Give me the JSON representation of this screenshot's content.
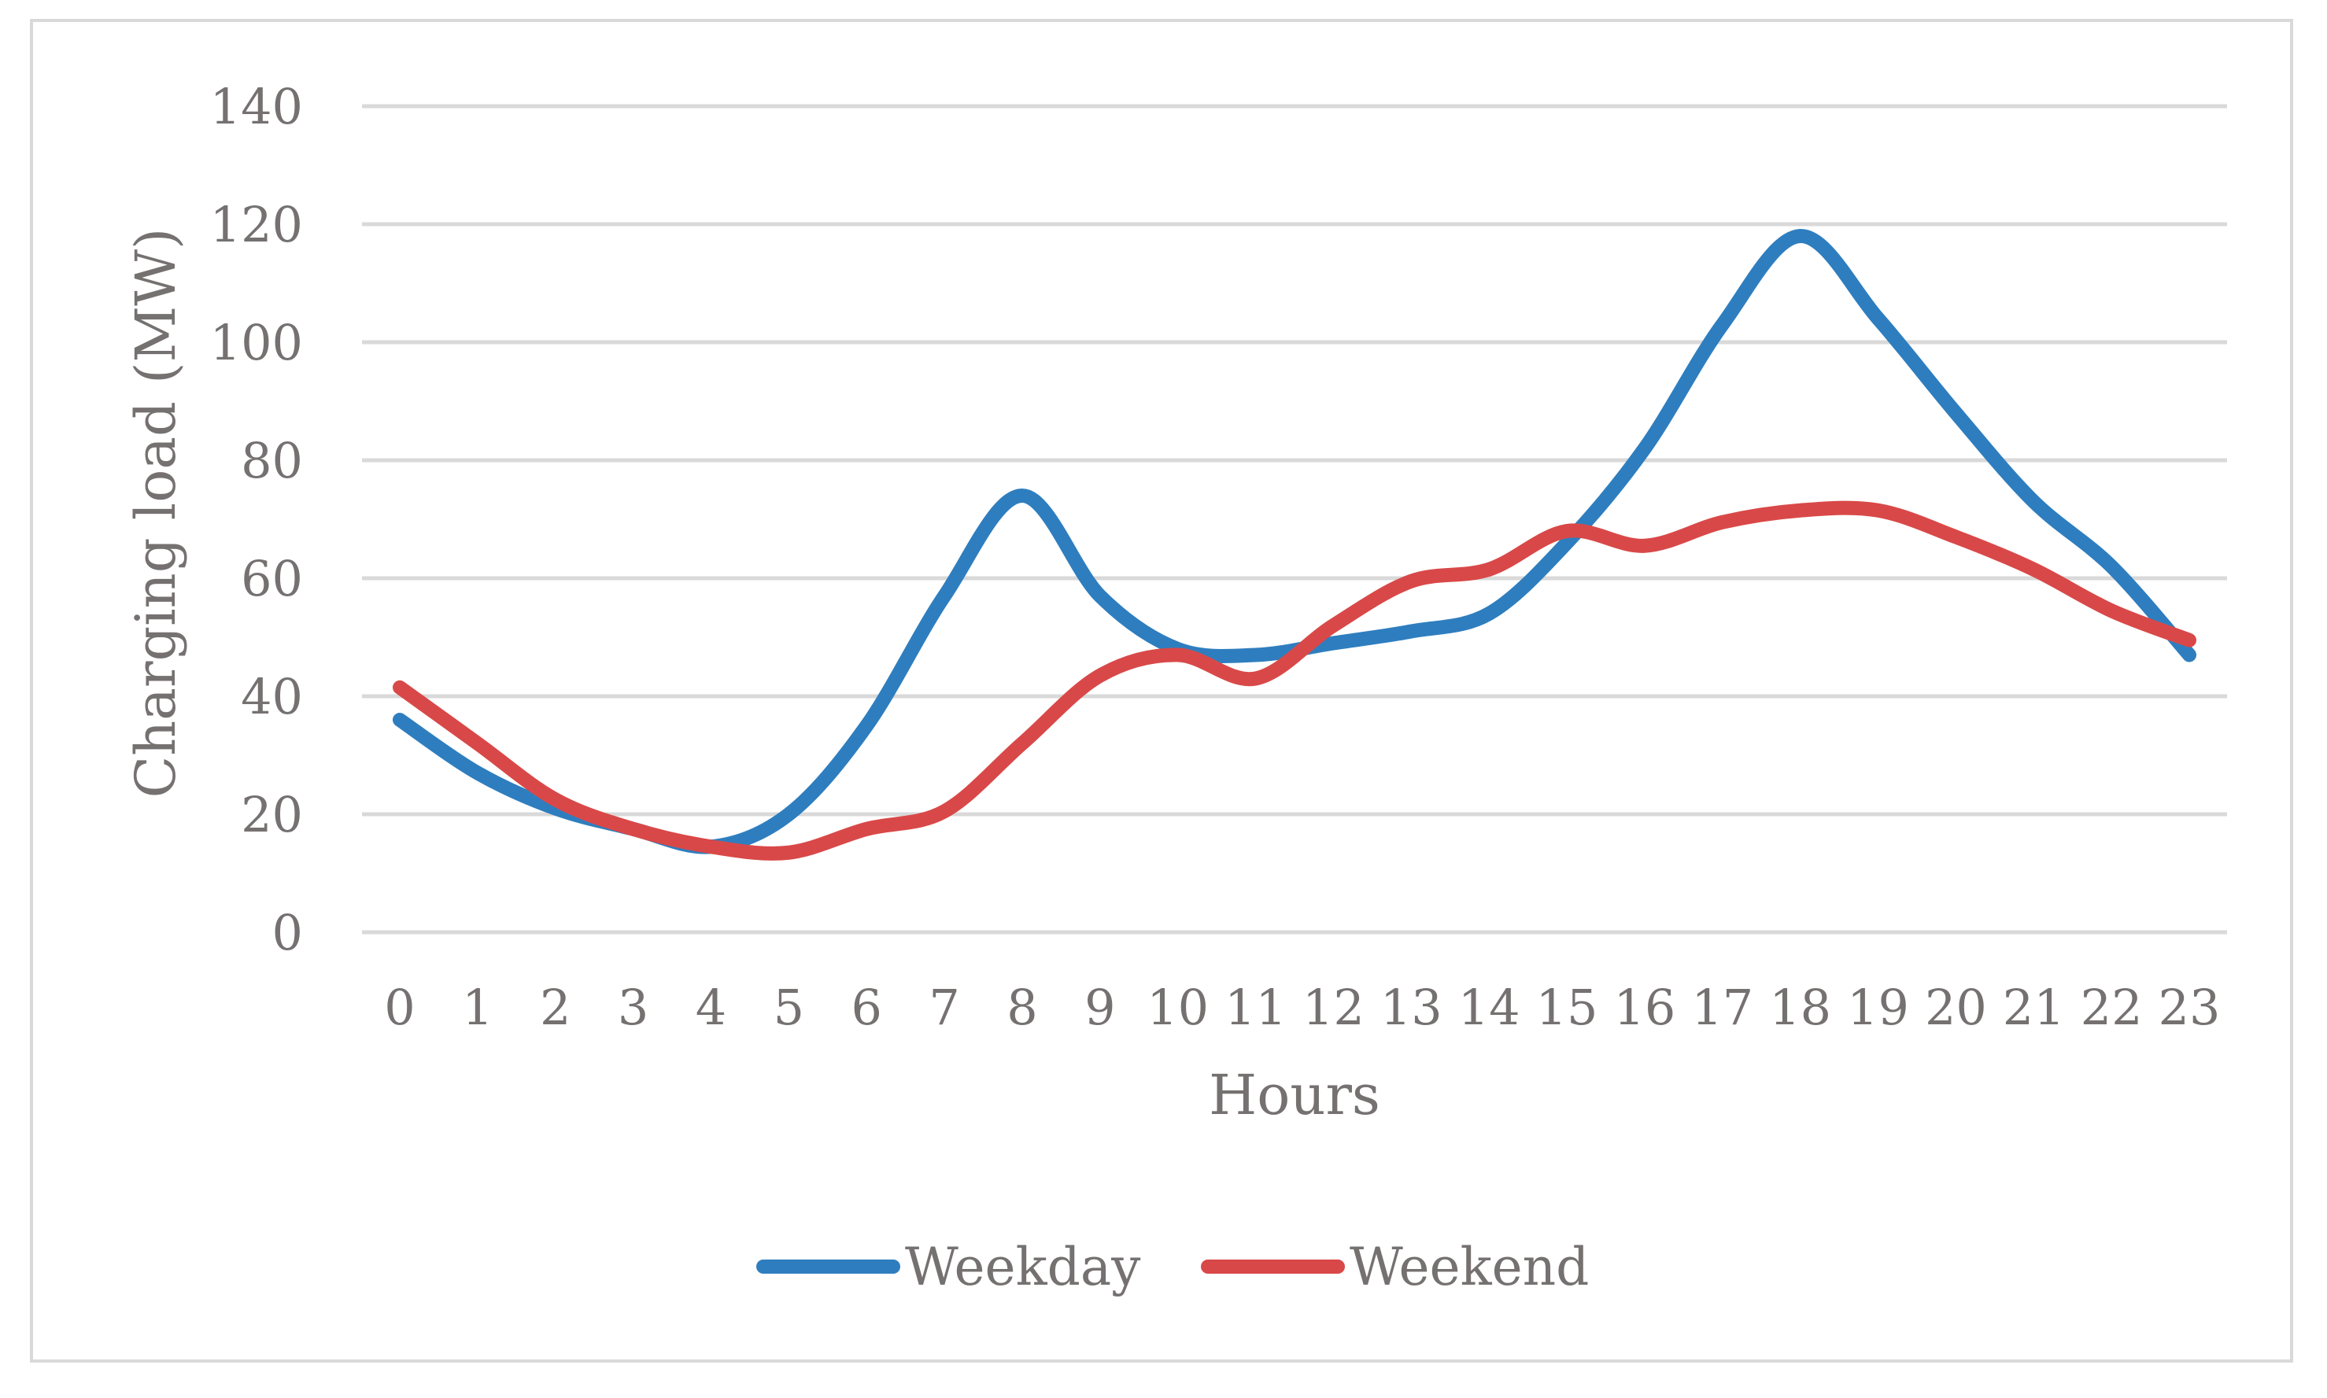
{
  "chart_data": {
    "type": "line",
    "title": "",
    "xlabel": "Hours",
    "ylabel": "Charging load (MW)",
    "x": [
      0,
      1,
      2,
      3,
      4,
      5,
      6,
      7,
      8,
      9,
      10,
      11,
      12,
      13,
      14,
      15,
      16,
      17,
      18,
      19,
      20,
      21,
      22,
      23
    ],
    "ylim": [
      0,
      140
    ],
    "yticks": [
      0,
      20,
      40,
      60,
      80,
      100,
      120,
      140
    ],
    "grid": true,
    "legend": "bottom",
    "series": [
      {
        "name": "Weekday",
        "color": "#2e7ebf",
        "values": [
          36,
          27,
          21,
          17.5,
          14.5,
          20,
          35,
          57,
          74,
          57,
          48,
          47,
          49,
          51,
          54,
          66,
          82,
          103,
          118,
          104,
          88,
          73,
          62,
          47
        ]
      },
      {
        "name": "Weekend",
        "color": "#d94848",
        "values": [
          41.5,
          32,
          22.5,
          17.5,
          14.5,
          13.5,
          17.5,
          20.5,
          32,
          43.5,
          47,
          43,
          52,
          59.5,
          61.5,
          68,
          65.5,
          69.5,
          71.5,
          71.5,
          67,
          61.5,
          54.5,
          49.5
        ]
      }
    ]
  }
}
